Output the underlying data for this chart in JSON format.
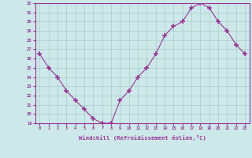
{
  "x": [
    0,
    1,
    2,
    3,
    4,
    5,
    6,
    7,
    8,
    9,
    10,
    11,
    12,
    13,
    14,
    15,
    16,
    17,
    18,
    19,
    20,
    21,
    22,
    23
  ],
  "y": [
    26.5,
    25.0,
    24.0,
    22.5,
    21.5,
    20.5,
    19.5,
    19.0,
    19.0,
    21.5,
    22.5,
    24.0,
    25.0,
    26.5,
    28.5,
    29.5,
    30.0,
    31.5,
    32.0,
    31.5,
    30.0,
    29.0,
    27.5,
    26.5
  ],
  "ylim": [
    19,
    32
  ],
  "yticks": [
    19,
    20,
    21,
    22,
    23,
    24,
    25,
    26,
    27,
    28,
    29,
    30,
    31,
    32
  ],
  "xtick_labels": [
    "0",
    "1",
    "2",
    "3",
    "4",
    "5",
    "6",
    "7",
    "8",
    "9",
    "10",
    "11",
    "12",
    "13",
    "14",
    "15",
    "16",
    "17",
    "18",
    "19",
    "20",
    "21",
    "22",
    "23"
  ],
  "xlabel": "Windchill (Refroidissement éolien,°C)",
  "line_color": "#993399",
  "marker": "+",
  "marker_size": 4.0,
  "bg_color": "#cce8e8",
  "grid_color": "#aacccc",
  "axis_color": "#993399",
  "tick_color": "#993399",
  "xlabel_color": "#993399"
}
